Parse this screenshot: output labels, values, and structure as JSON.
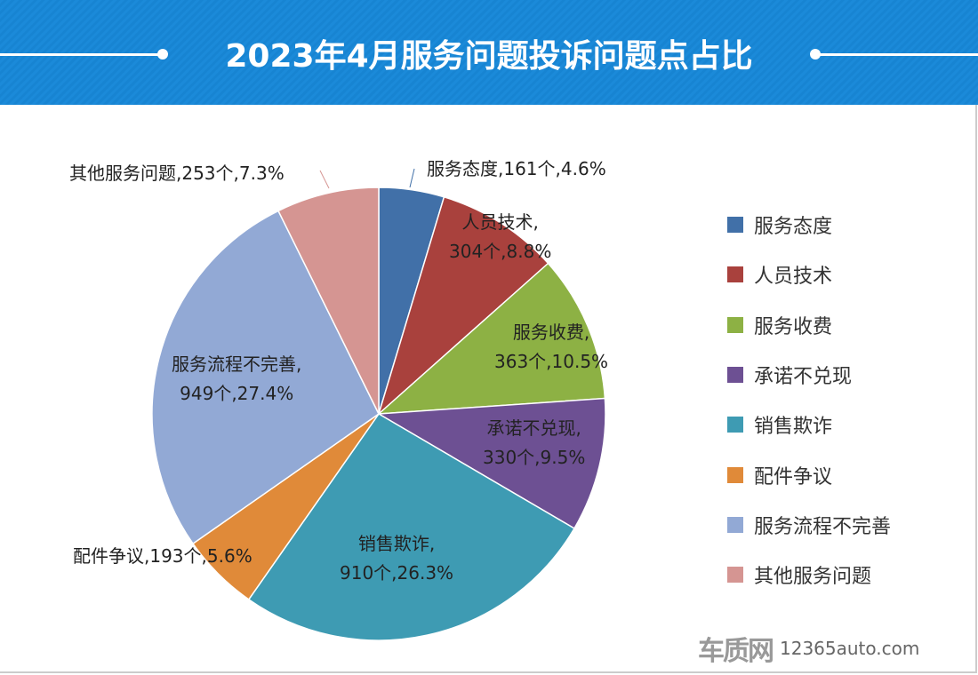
{
  "chart_data": {
    "type": "pie",
    "title": "2023年4月服务问题投诉问题点占比",
    "legend_position": "right",
    "slices": [
      {
        "name": "服务态度",
        "count": 161,
        "percent": 4.6,
        "color": "#4170a8",
        "label1": "服务态度,161个,4.6%"
      },
      {
        "name": "人员技术",
        "count": 304,
        "percent": 8.8,
        "color": "#a9413d",
        "label1": "人员技术,",
        "label2": "304个,8.8%"
      },
      {
        "name": "服务收费",
        "count": 363,
        "percent": 10.5,
        "color": "#8db144",
        "label1": "服务收费,",
        "label2": "363个,10.5%"
      },
      {
        "name": "承诺不兑现",
        "count": 330,
        "percent": 9.5,
        "color": "#6d5093",
        "label1": "承诺不兑现,",
        "label2": "330个,9.5%"
      },
      {
        "name": "销售欺诈",
        "count": 910,
        "percent": 26.3,
        "color": "#3e9bb3",
        "label1": "销售欺诈,",
        "label2": "910个,26.3%"
      },
      {
        "name": "配件争议",
        "count": 193,
        "percent": 5.6,
        "color": "#e08a39",
        "label1": "配件争议,193个,5.6%"
      },
      {
        "name": "服务流程不完善",
        "count": 949,
        "percent": 27.4,
        "color": "#92a9d5",
        "label1": "服务流程不完善,",
        "label2": "949个,27.4%"
      },
      {
        "name": "其他服务问题",
        "count": 253,
        "percent": 7.3,
        "color": "#d59592",
        "label1": "其他服务问题,253个,7.3%"
      }
    ]
  },
  "watermark": {
    "logo": "车质网",
    "url": "12365auto.com"
  }
}
